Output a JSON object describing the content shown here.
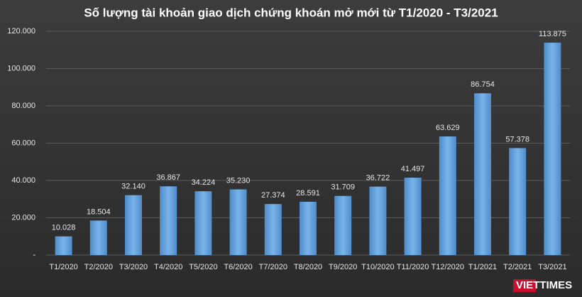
{
  "chart_data": {
    "type": "bar",
    "title": "Số lượng tài khoản giao dịch chứng khoán mở mới từ T1/2020 - T3/2021",
    "categories": [
      "T1/2020",
      "T2/2020",
      "T3/2020",
      "T4/2020",
      "T5/2020",
      "T6/2020",
      "T7/2020",
      "T8/2020",
      "T9/2020",
      "T10/2020",
      "T11/2020",
      "T12/2020",
      "T1/2021",
      "T2/2021",
      "T3/2021"
    ],
    "values": [
      10028,
      18504,
      32140,
      36867,
      34224,
      35230,
      27374,
      28591,
      31709,
      36722,
      41497,
      63629,
      86754,
      57378,
      113875
    ],
    "value_labels": [
      "10.028",
      "18.504",
      "32.140",
      "36.867",
      "34.224",
      "35.230",
      "27.374",
      "28.591",
      "31.709",
      "36.722",
      "41.497",
      "63.629",
      "86.754",
      "57.378",
      "113.875"
    ],
    "color": "#5b9bd5",
    "ylim": [
      0,
      120000
    ],
    "yticks": [
      {
        "value": 0,
        "label": "-"
      },
      {
        "value": 20000,
        "label": "20.000"
      },
      {
        "value": 40000,
        "label": "40.000"
      },
      {
        "value": 60000,
        "label": "60.000"
      },
      {
        "value": 80000,
        "label": "80.000"
      },
      {
        "value": 100000,
        "label": "100.000"
      },
      {
        "value": 120000,
        "label": "120.000"
      }
    ],
    "grid": true,
    "watermark": "VIETTIMES"
  }
}
